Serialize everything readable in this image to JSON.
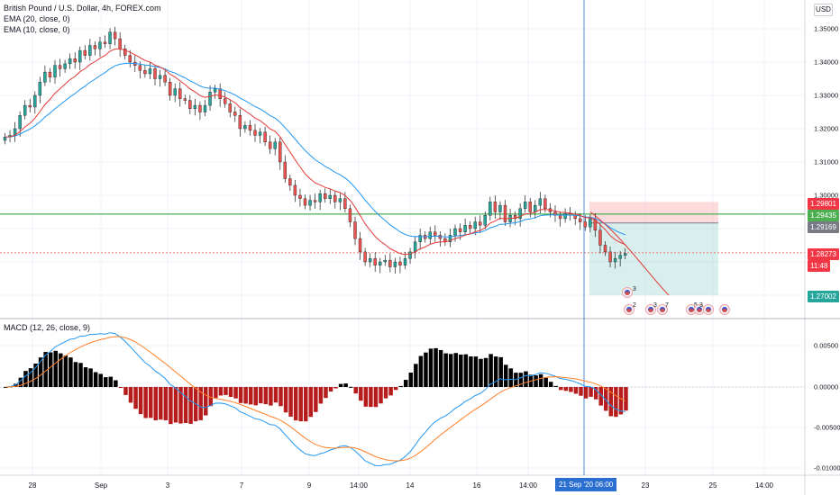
{
  "header": {
    "symbol_line": "British Pound / U.S. Dollar, 4h, FOREX.com",
    "ema1": "EMA (20, close, 0)",
    "ema2": "EMA (10, close, 0)",
    "macd": "MACD (12, 26, close, 9)",
    "currency": "USD"
  },
  "price_axis": {
    "ticks": [
      "1.35000",
      "1.34000",
      "1.33000",
      "1.32000",
      "1.31000",
      "1.30000"
    ],
    "labels": [
      {
        "text": "1.29801",
        "bg": "#f23645",
        "fg": "#ffffff"
      },
      {
        "text": "1.29435",
        "bg": "#4caf50",
        "fg": "#ffffff"
      },
      {
        "text": "1.29169",
        "bg": "#787b86",
        "fg": "#ffffff"
      },
      {
        "text": "1.28273",
        "bg": "#f23645",
        "fg": "#ffffff"
      },
      {
        "text": "11:48",
        "bg": "#f23645",
        "fg": "#ffffff"
      },
      {
        "text": "1.27002",
        "bg": "#26a69a",
        "fg": "#ffffff"
      }
    ]
  },
  "macd_axis": {
    "ticks": [
      "0.00500",
      "0.00000",
      "-0.00500",
      "-0.01000"
    ]
  },
  "time_axis": {
    "ticks": [
      "28",
      "Sep",
      "3",
      "7",
      "9",
      "14:00",
      "14",
      "16",
      "14:00",
      "23",
      "25",
      "14:00"
    ],
    "selected": "21 Sep '20   06:00"
  },
  "event_badges": {
    "counts": [
      "3",
      "2",
      "3",
      "7",
      "5",
      "3"
    ]
  },
  "colors": {
    "bull": "#26a69a",
    "bear": "#ef5350",
    "ema20": "#2196f3",
    "ema10": "#e53935",
    "macd_line": "#2196f3",
    "signal_line": "#ff7f26",
    "hist_pos": "#000000",
    "hist_neg": "#b71c1c",
    "horizontal_line": "#4caf50",
    "crosshair": "#2a6fd1"
  }
}
